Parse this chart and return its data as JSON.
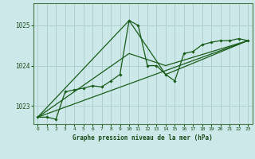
{
  "title": "Graphe pression niveau de la mer (hPa)",
  "bg_color": "#cce8e8",
  "grid_color": "#b0d0d0",
  "line_color": "#1a5c1a",
  "xlim": [
    -0.5,
    23.5
  ],
  "ylim": [
    1022.55,
    1025.55
  ],
  "yticks": [
    1023,
    1024,
    1025
  ],
  "xticks": [
    0,
    1,
    2,
    3,
    4,
    5,
    6,
    7,
    8,
    9,
    10,
    11,
    12,
    13,
    14,
    15,
    16,
    17,
    18,
    19,
    20,
    21,
    22,
    23
  ],
  "series1_x": [
    0,
    1,
    2,
    3,
    4,
    5,
    6,
    7,
    8,
    9,
    10,
    11,
    12,
    13,
    14,
    15,
    16,
    17,
    18,
    19,
    20,
    21,
    22,
    23
  ],
  "series1_y": [
    1022.72,
    1022.72,
    1022.67,
    1023.35,
    1023.4,
    1023.44,
    1023.5,
    1023.47,
    1023.62,
    1023.78,
    1025.12,
    1025.0,
    1024.0,
    1024.0,
    1023.78,
    1023.62,
    1024.3,
    1024.35,
    1024.52,
    1024.58,
    1024.62,
    1024.62,
    1024.67,
    1024.62
  ],
  "series2_x": [
    0,
    23
  ],
  "series2_y": [
    1022.72,
    1024.62
  ],
  "series3_x": [
    0,
    10,
    14,
    23
  ],
  "series3_y": [
    1022.72,
    1025.12,
    1023.78,
    1024.62
  ],
  "series4_x": [
    0,
    10,
    14,
    23
  ],
  "series4_y": [
    1022.72,
    1024.3,
    1024.0,
    1024.62
  ]
}
